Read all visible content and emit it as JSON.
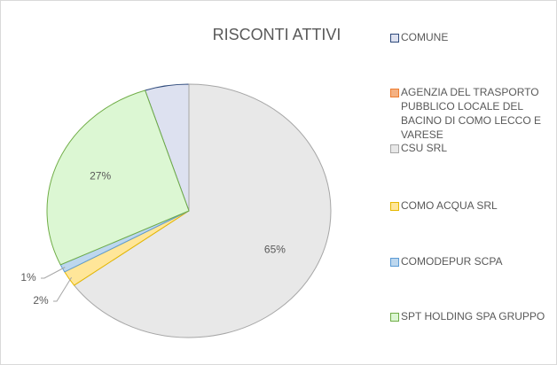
{
  "chart_data": {
    "type": "pie",
    "title": "RISCONTI ATTIVI",
    "categories": [
      "COMUNE",
      "AGENZIA DEL TRASPORTO PUBBLICO LOCALE DEL BACINO DI COMO LECCO E VARESE",
      "CSU SRL",
      "COMO ACQUA SRL",
      "COMODEPUR SCPA",
      "SPT HOLDING SPA GRUPPO"
    ],
    "values": [
      5,
      0,
      65,
      2,
      1,
      27
    ],
    "value_labels": [
      null,
      null,
      "65%",
      "2%",
      "1%",
      "27%"
    ],
    "colors": [
      "#dde1f0",
      "#f4b183",
      "#e8e8e8",
      "#ffe699",
      "#bdd7ee",
      "#dcf7d3"
    ],
    "edge_colors": [
      "#2f4b7c",
      "#ed7d31",
      "#a6a6a6",
      "#e6b800",
      "#5b9bd5",
      "#70ad47"
    ],
    "legend": "right"
  }
}
